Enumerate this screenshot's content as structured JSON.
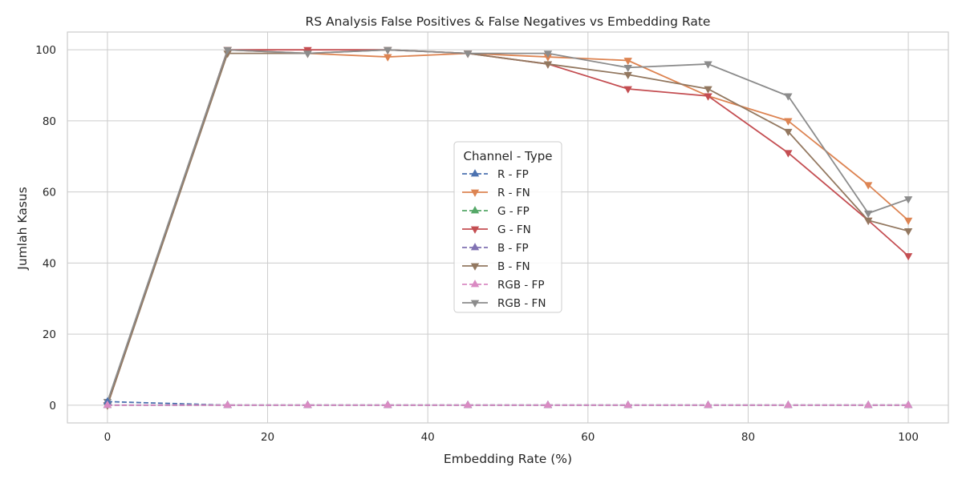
{
  "chart_data": {
    "type": "line",
    "title": "RS Analysis False Positives & False Negatives vs Embedding Rate",
    "xlabel": "Embedding Rate (%)",
    "ylabel": "Jumlah Kasus",
    "xlim": [
      -5,
      105
    ],
    "ylim": [
      -5,
      105
    ],
    "xticks": [
      0,
      20,
      40,
      60,
      80,
      100
    ],
    "yticks": [
      0,
      20,
      40,
      60,
      80,
      100
    ],
    "grid": true,
    "legend": {
      "title": "Channel - Type",
      "placement": "center"
    },
    "x": [
      0,
      15,
      25,
      35,
      45,
      55,
      65,
      75,
      85,
      95,
      100
    ],
    "series": [
      {
        "name": "R - FP",
        "color": "#4c72b0",
        "marker": "triangle-up",
        "dashed": true,
        "values": [
          1,
          0,
          0,
          0,
          0,
          0,
          0,
          0,
          0,
          0,
          0
        ]
      },
      {
        "name": "R - FN",
        "color": "#dd8452",
        "marker": "triangle-down",
        "dashed": false,
        "values": [
          0,
          100,
          99,
          98,
          99,
          98,
          97,
          87,
          80,
          62,
          52
        ]
      },
      {
        "name": "G - FP",
        "color": "#55a868",
        "marker": "triangle-up",
        "dashed": true,
        "values": [
          0,
          0,
          0,
          0,
          0,
          0,
          0,
          0,
          0,
          0,
          0
        ]
      },
      {
        "name": "G - FN",
        "color": "#c44e52",
        "marker": "triangle-down",
        "dashed": false,
        "values": [
          0,
          100,
          100,
          100,
          99,
          96,
          89,
          87,
          71,
          52,
          42
        ]
      },
      {
        "name": "B - FP",
        "color": "#8172b3",
        "marker": "triangle-up",
        "dashed": true,
        "values": [
          0,
          0,
          0,
          0,
          0,
          0,
          0,
          0,
          0,
          0,
          0
        ]
      },
      {
        "name": "B - FN",
        "color": "#937860",
        "marker": "triangle-down",
        "dashed": false,
        "values": [
          0,
          99,
          99,
          100,
          99,
          96,
          93,
          89,
          77,
          52,
          49
        ]
      },
      {
        "name": "RGB - FP",
        "color": "#da8bc3",
        "marker": "triangle-up",
        "dashed": true,
        "values": [
          0,
          0,
          0,
          0,
          0,
          0,
          0,
          0,
          0,
          0,
          0
        ]
      },
      {
        "name": "RGB - FN",
        "color": "#8c8c8c",
        "marker": "triangle-down",
        "dashed": false,
        "values": [
          1,
          100,
          99,
          100,
          99,
          99,
          95,
          96,
          87,
          54,
          58
        ]
      }
    ]
  }
}
